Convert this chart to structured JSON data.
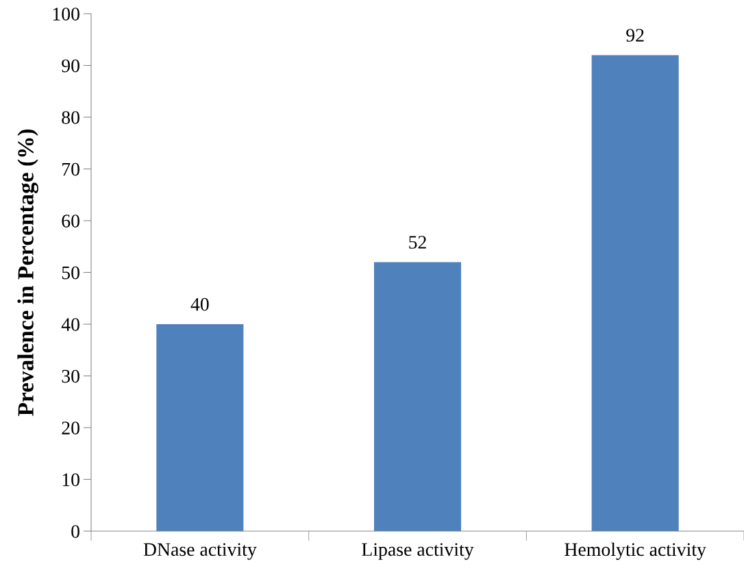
{
  "chart_data": {
    "type": "bar",
    "ylabel": "Prevalence in Percentage (%)",
    "categories": [
      "DNase activity",
      "Lipase activity",
      "Hemolytic activity"
    ],
    "values": [
      40,
      52,
      92
    ],
    "color": "#4f81bd",
    "ylim": [
      0,
      100
    ],
    "yticks": [
      0,
      10,
      20,
      30,
      40,
      50,
      60,
      70,
      80,
      90,
      100
    ],
    "data_labels": true,
    "grid": false
  }
}
